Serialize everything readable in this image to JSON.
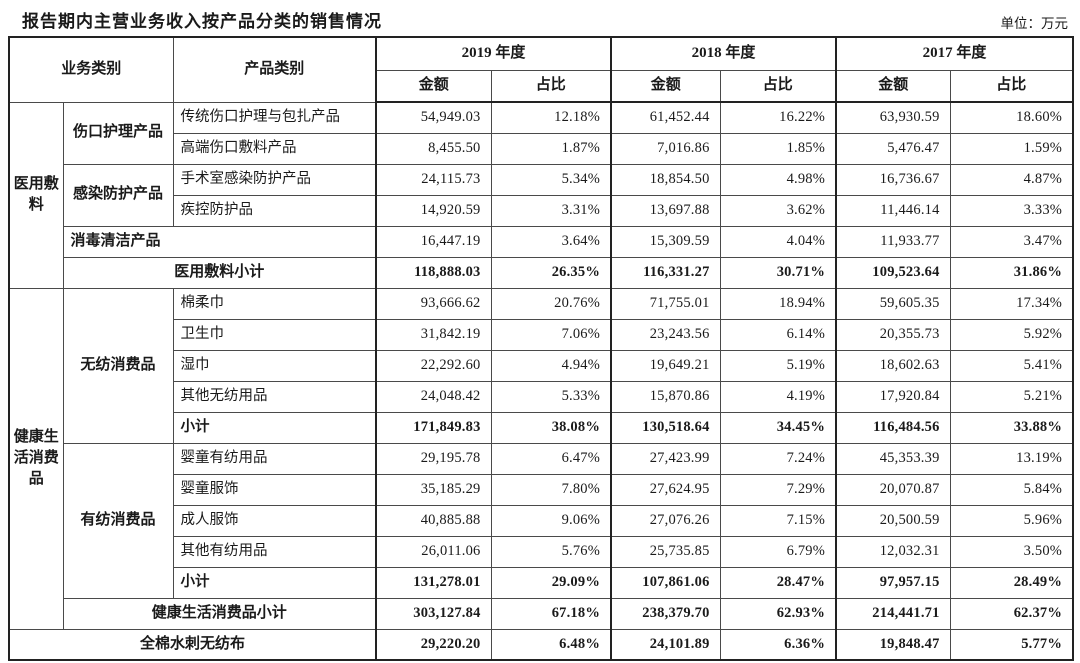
{
  "page": {
    "title": "报告期内主营业务收入按产品分类的销售情况",
    "unit_label": "单位：万元"
  },
  "table": {
    "header": {
      "business_category": "业务类别",
      "product_category": "产品类别",
      "year_groups": [
        "2019 年度",
        "2018 年度",
        "2017 年度"
      ],
      "sub_columns": [
        "金额",
        "占比"
      ]
    },
    "rows": [
      {
        "cells": [
          {
            "t": "医用敷料",
            "cls": "cat",
            "rs": 6
          },
          {
            "t": "伤口护理产品",
            "cls": "grp",
            "rs": 2
          },
          {
            "t": "传统伤口护理与包扎产品",
            "cls": "prod"
          },
          {
            "t": "54,949.03",
            "cls": "num ys"
          },
          {
            "t": "12.18%",
            "cls": "pct"
          },
          {
            "t": "61,452.44",
            "cls": "num ys"
          },
          {
            "t": "16.22%",
            "cls": "pct"
          },
          {
            "t": "63,930.59",
            "cls": "num ys"
          },
          {
            "t": "18.60%",
            "cls": "pct"
          }
        ]
      },
      {
        "cells": [
          {
            "t": "高端伤口敷料产品",
            "cls": "prod"
          },
          {
            "t": "8,455.50",
            "cls": "num ys"
          },
          {
            "t": "1.87%",
            "cls": "pct"
          },
          {
            "t": "7,016.86",
            "cls": "num ys"
          },
          {
            "t": "1.85%",
            "cls": "pct"
          },
          {
            "t": "5,476.47",
            "cls": "num ys"
          },
          {
            "t": "1.59%",
            "cls": "pct"
          }
        ]
      },
      {
        "cells": [
          {
            "t": "感染防护产品",
            "cls": "grp",
            "rs": 2
          },
          {
            "t": "手术室感染防护产品",
            "cls": "prod"
          },
          {
            "t": "24,115.73",
            "cls": "num ys"
          },
          {
            "t": "5.34%",
            "cls": "pct"
          },
          {
            "t": "18,854.50",
            "cls": "num ys"
          },
          {
            "t": "4.98%",
            "cls": "pct"
          },
          {
            "t": "16,736.67",
            "cls": "num ys"
          },
          {
            "t": "4.87%",
            "cls": "pct"
          }
        ]
      },
      {
        "cells": [
          {
            "t": "疾控防护品",
            "cls": "prod"
          },
          {
            "t": "14,920.59",
            "cls": "num ys"
          },
          {
            "t": "3.31%",
            "cls": "pct"
          },
          {
            "t": "13,697.88",
            "cls": "num ys"
          },
          {
            "t": "3.62%",
            "cls": "pct"
          },
          {
            "t": "11,446.14",
            "cls": "num ys"
          },
          {
            "t": "3.33%",
            "cls": "pct"
          }
        ]
      },
      {
        "cells": [
          {
            "t": "消毒清洁产品",
            "cls": "grp left",
            "cs": 2
          },
          {
            "t": "16,447.19",
            "cls": "num ys"
          },
          {
            "t": "3.64%",
            "cls": "pct"
          },
          {
            "t": "15,309.59",
            "cls": "num ys"
          },
          {
            "t": "4.04%",
            "cls": "pct"
          },
          {
            "t": "11,933.77",
            "cls": "num ys"
          },
          {
            "t": "3.47%",
            "cls": "pct"
          }
        ]
      },
      {
        "cells": [
          {
            "t": "医用敷料小计",
            "cls": "sub",
            "cs": 2
          },
          {
            "t": "118,888.03",
            "cls": "num ys",
            "b": 1
          },
          {
            "t": "26.35%",
            "cls": "pct",
            "b": 1
          },
          {
            "t": "116,331.27",
            "cls": "num ys",
            "b": 1
          },
          {
            "t": "30.71%",
            "cls": "pct",
            "b": 1
          },
          {
            "t": "109,523.64",
            "cls": "num ys",
            "b": 1
          },
          {
            "t": "31.86%",
            "cls": "pct",
            "b": 1
          }
        ]
      },
      {
        "cells": [
          {
            "t": "健康生活消费品",
            "cls": "cat",
            "rs": 11
          },
          {
            "t": "无纺消费品",
            "cls": "grp",
            "rs": 5
          },
          {
            "t": "棉柔巾",
            "cls": "prod"
          },
          {
            "t": "93,666.62",
            "cls": "num ys"
          },
          {
            "t": "20.76%",
            "cls": "pct"
          },
          {
            "t": "71,755.01",
            "cls": "num ys"
          },
          {
            "t": "18.94%",
            "cls": "pct"
          },
          {
            "t": "59,605.35",
            "cls": "num ys"
          },
          {
            "t": "17.34%",
            "cls": "pct"
          }
        ]
      },
      {
        "cells": [
          {
            "t": "卫生巾",
            "cls": "prod"
          },
          {
            "t": "31,842.19",
            "cls": "num ys"
          },
          {
            "t": "7.06%",
            "cls": "pct"
          },
          {
            "t": "23,243.56",
            "cls": "num ys"
          },
          {
            "t": "6.14%",
            "cls": "pct"
          },
          {
            "t": "20,355.73",
            "cls": "num ys"
          },
          {
            "t": "5.92%",
            "cls": "pct"
          }
        ]
      },
      {
        "cells": [
          {
            "t": "湿巾",
            "cls": "prod"
          },
          {
            "t": "22,292.60",
            "cls": "num ys"
          },
          {
            "t": "4.94%",
            "cls": "pct"
          },
          {
            "t": "19,649.21",
            "cls": "num ys"
          },
          {
            "t": "5.19%",
            "cls": "pct"
          },
          {
            "t": "18,602.63",
            "cls": "num ys"
          },
          {
            "t": "5.41%",
            "cls": "pct"
          }
        ]
      },
      {
        "cells": [
          {
            "t": "其他无纺用品",
            "cls": "prod"
          },
          {
            "t": "24,048.42",
            "cls": "num ys"
          },
          {
            "t": "5.33%",
            "cls": "pct"
          },
          {
            "t": "15,870.86",
            "cls": "num ys"
          },
          {
            "t": "4.19%",
            "cls": "pct"
          },
          {
            "t": "17,920.84",
            "cls": "num ys"
          },
          {
            "t": "5.21%",
            "cls": "pct"
          }
        ]
      },
      {
        "cells": [
          {
            "t": "小计",
            "cls": "prod",
            "b": 1
          },
          {
            "t": "171,849.83",
            "cls": "num ys",
            "b": 1
          },
          {
            "t": "38.08%",
            "cls": "pct",
            "b": 1
          },
          {
            "t": "130,518.64",
            "cls": "num ys",
            "b": 1
          },
          {
            "t": "34.45%",
            "cls": "pct",
            "b": 1
          },
          {
            "t": "116,484.56",
            "cls": "num ys",
            "b": 1
          },
          {
            "t": "33.88%",
            "cls": "pct",
            "b": 1
          }
        ]
      },
      {
        "cells": [
          {
            "t": "有纺消费品",
            "cls": "grp",
            "rs": 5
          },
          {
            "t": "婴童有纺用品",
            "cls": "prod"
          },
          {
            "t": "29,195.78",
            "cls": "num ys"
          },
          {
            "t": "6.47%",
            "cls": "pct"
          },
          {
            "t": "27,423.99",
            "cls": "num ys"
          },
          {
            "t": "7.24%",
            "cls": "pct"
          },
          {
            "t": "45,353.39",
            "cls": "num ys"
          },
          {
            "t": "13.19%",
            "cls": "pct"
          }
        ]
      },
      {
        "cells": [
          {
            "t": "婴童服饰",
            "cls": "prod"
          },
          {
            "t": "35,185.29",
            "cls": "num ys"
          },
          {
            "t": "7.80%",
            "cls": "pct"
          },
          {
            "t": "27,624.95",
            "cls": "num ys"
          },
          {
            "t": "7.29%",
            "cls": "pct"
          },
          {
            "t": "20,070.87",
            "cls": "num ys"
          },
          {
            "t": "5.84%",
            "cls": "pct"
          }
        ]
      },
      {
        "cells": [
          {
            "t": "成人服饰",
            "cls": "prod"
          },
          {
            "t": "40,885.88",
            "cls": "num ys"
          },
          {
            "t": "9.06%",
            "cls": "pct"
          },
          {
            "t": "27,076.26",
            "cls": "num ys"
          },
          {
            "t": "7.15%",
            "cls": "pct"
          },
          {
            "t": "20,500.59",
            "cls": "num ys"
          },
          {
            "t": "5.96%",
            "cls": "pct"
          }
        ]
      },
      {
        "cells": [
          {
            "t": "其他有纺用品",
            "cls": "prod"
          },
          {
            "t": "26,011.06",
            "cls": "num ys"
          },
          {
            "t": "5.76%",
            "cls": "pct"
          },
          {
            "t": "25,735.85",
            "cls": "num ys"
          },
          {
            "t": "6.79%",
            "cls": "pct"
          },
          {
            "t": "12,032.31",
            "cls": "num ys"
          },
          {
            "t": "3.50%",
            "cls": "pct"
          }
        ]
      },
      {
        "cells": [
          {
            "t": "小计",
            "cls": "prod",
            "b": 1
          },
          {
            "t": "131,278.01",
            "cls": "num ys",
            "b": 1
          },
          {
            "t": "29.09%",
            "cls": "pct",
            "b": 1
          },
          {
            "t": "107,861.06",
            "cls": "num ys",
            "b": 1
          },
          {
            "t": "28.47%",
            "cls": "pct",
            "b": 1
          },
          {
            "t": "97,957.15",
            "cls": "num ys",
            "b": 1
          },
          {
            "t": "28.49%",
            "cls": "pct",
            "b": 1
          }
        ]
      },
      {
        "cells": [
          {
            "t": "健康生活消费品小计",
            "cls": "sub",
            "cs": 2
          },
          {
            "t": "303,127.84",
            "cls": "num ys",
            "b": 1
          },
          {
            "t": "67.18%",
            "cls": "pct",
            "b": 1
          },
          {
            "t": "238,379.70",
            "cls": "num ys",
            "b": 1
          },
          {
            "t": "62.93%",
            "cls": "pct",
            "b": 1
          },
          {
            "t": "214,441.71",
            "cls": "num ys",
            "b": 1
          },
          {
            "t": "62.37%",
            "cls": "pct",
            "b": 1
          }
        ]
      },
      {
        "cells": [
          {
            "t": "全棉水刺无纺布",
            "cls": "full",
            "cs": 3
          },
          {
            "t": "29,220.20",
            "cls": "num ys",
            "b": 1
          },
          {
            "t": "6.48%",
            "cls": "pct",
            "b": 1
          },
          {
            "t": "24,101.89",
            "cls": "num ys",
            "b": 1
          },
          {
            "t": "6.36%",
            "cls": "pct",
            "b": 1
          },
          {
            "t": "19,848.47",
            "cls": "num ys",
            "b": 1
          },
          {
            "t": "5.77%",
            "cls": "pct",
            "b": 1
          }
        ]
      }
    ]
  }
}
